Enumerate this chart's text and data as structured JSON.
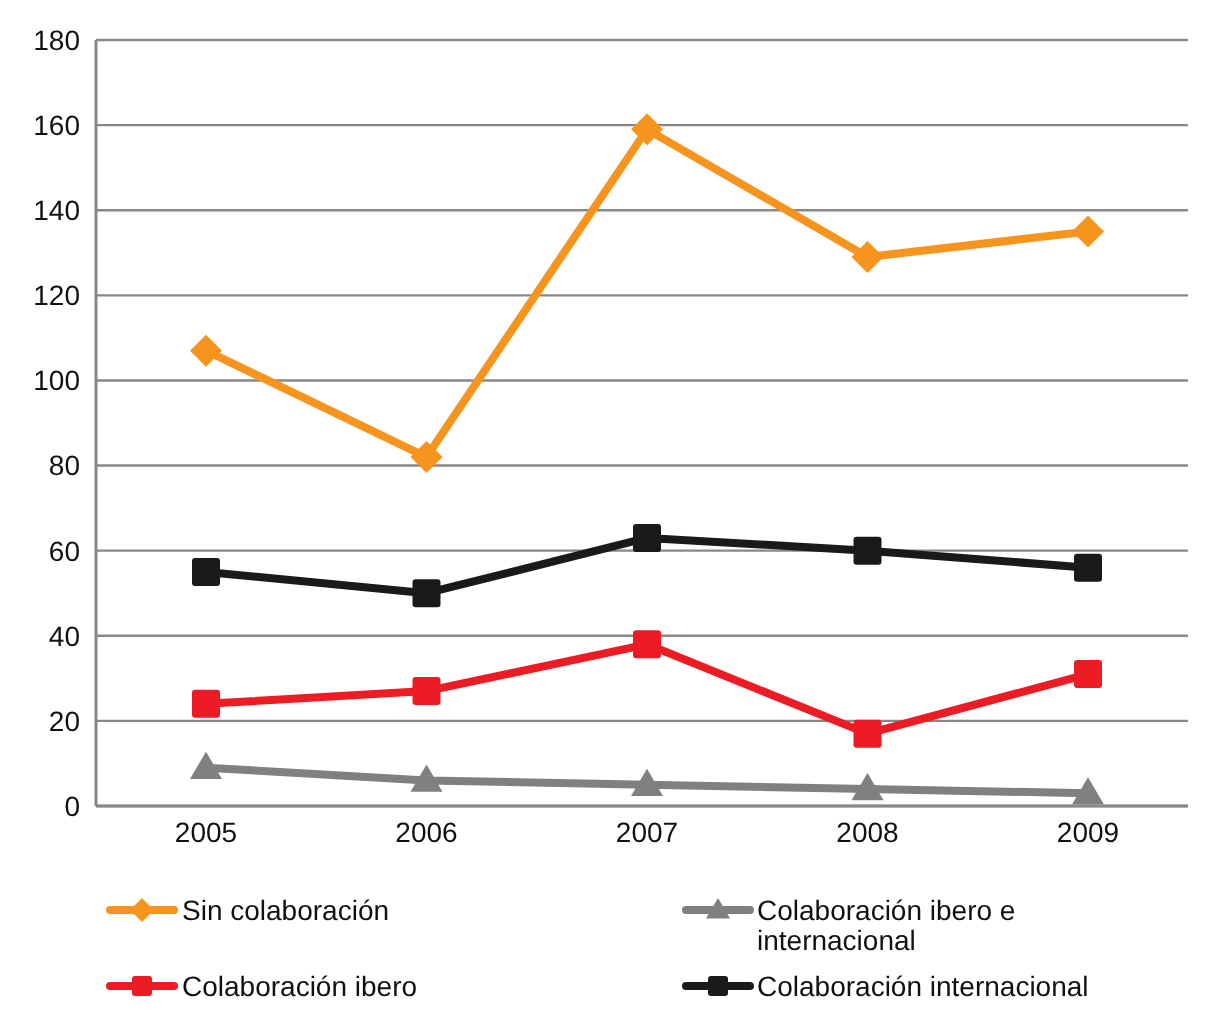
{
  "chart_data": {
    "type": "line",
    "categories": [
      "2005",
      "2006",
      "2007",
      "2008",
      "2009"
    ],
    "series": [
      {
        "name": "Sin colaboración",
        "color": "#f7941d",
        "marker": "diamond",
        "values": [
          107,
          82,
          159,
          129,
          135
        ]
      },
      {
        "name": "Colaboración ibero",
        "color": "#ed1c24",
        "marker": "square",
        "values": [
          24,
          27,
          38,
          17,
          31
        ]
      },
      {
        "name": "Colaboración ibero e internacional",
        "color": "#808080",
        "marker": "triangle",
        "values": [
          9,
          6,
          5,
          4,
          3
        ]
      },
      {
        "name": "Colaboración internacional",
        "color": "#1a1a1a",
        "marker": "square",
        "values": [
          55,
          50,
          63,
          60,
          56
        ]
      }
    ],
    "ylim": [
      0,
      180
    ],
    "yticks": [
      0,
      20,
      40,
      60,
      80,
      100,
      120,
      140,
      160,
      180
    ],
    "grid": "y",
    "legend": "bottom"
  }
}
